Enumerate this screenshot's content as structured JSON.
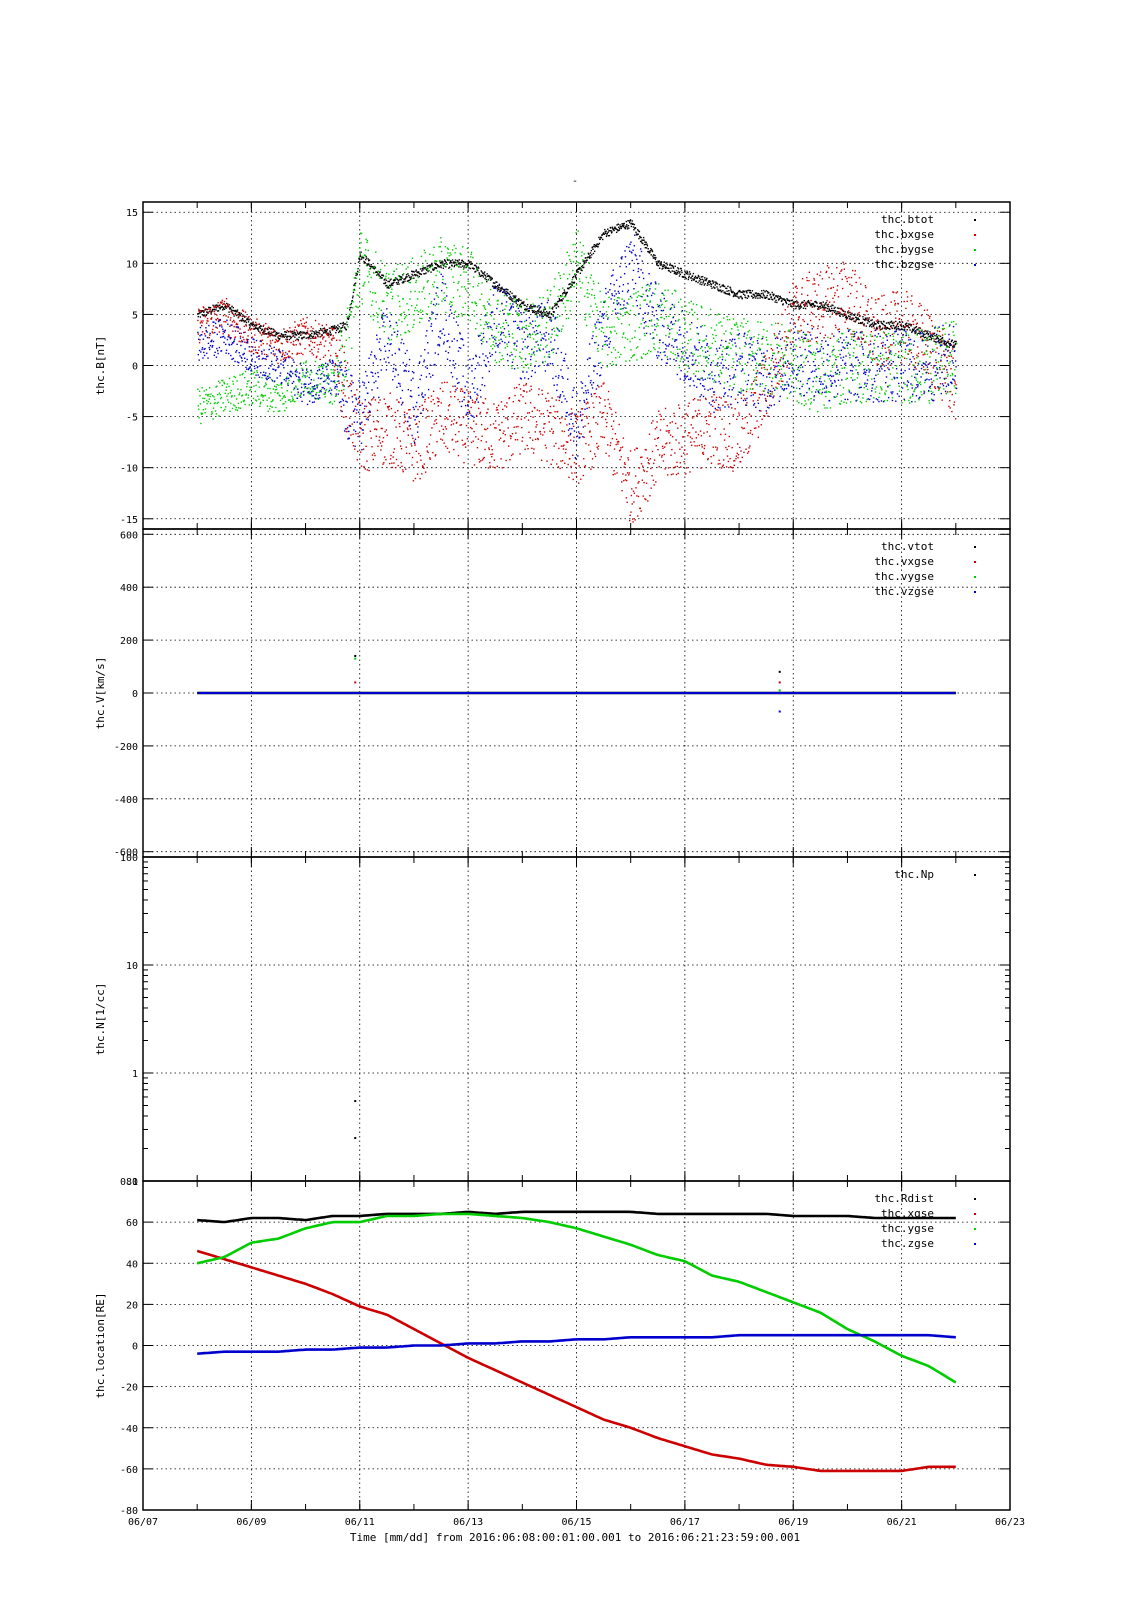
{
  "figure": {
    "title": "-",
    "xlabel": "Time [mm/dd]  from 2016:06:08:00:01:00.001  to  2016:06:21:23:59:00.001",
    "x_ticks": [
      "06/07",
      "06/09",
      "06/11",
      "06/13",
      "06/15",
      "06/17",
      "06/19",
      "06/21",
      "06/23"
    ],
    "colors": {
      "black": "#000000",
      "red": "#cc0000",
      "green": "#00cc00",
      "blue": "#0000cc"
    }
  },
  "chart_data": [
    {
      "type": "scatter",
      "ylabel": "thc.B[nT]",
      "ylim": [
        -16,
        16
      ],
      "yticks": [
        15,
        10,
        5,
        0,
        -5,
        -10,
        -15
      ],
      "ytick_labels": [
        "15",
        "10",
        "5",
        "0",
        "-5",
        "-10",
        "-15"
      ],
      "grid": true,
      "legend": "top-right",
      "xlim": [
        "06/07",
        "06/23"
      ],
      "series": [
        {
          "name": "thc.btot",
          "color": "#000000",
          "x": [
            "06/08",
            "06/08 12:00",
            "06/09",
            "06/09 12:00",
            "06/10",
            "06/10 12:00",
            "06/10 18:00",
            "06/11",
            "06/11 12:00",
            "06/12",
            "06/12 12:00",
            "06/13",
            "06/13 12:00",
            "06/14",
            "06/14 12:00",
            "06/15",
            "06/15 12:00",
            "06/16",
            "06/16 12:00",
            "06/17",
            "06/17 12:00",
            "06/18",
            "06/18 12:00",
            "06/19",
            "06/19 12:00",
            "06/20",
            "06/20 12:00",
            "06/21",
            "06/21 12:00",
            "06/22"
          ],
          "y": [
            5,
            6,
            4,
            3,
            3,
            3.5,
            4,
            11,
            8,
            9,
            10,
            10,
            8,
            6,
            5,
            9,
            13,
            14,
            10,
            9,
            8,
            7,
            7,
            6,
            6,
            5,
            4,
            4,
            3,
            2
          ]
        },
        {
          "name": "thc.bxgse",
          "color": "#cc0000",
          "x": [
            "06/08",
            "06/08 12:00",
            "06/09",
            "06/09 12:00",
            "06/10",
            "06/10 12:00",
            "06/10 18:00",
            "06/11",
            "06/11 12:00",
            "06/12",
            "06/12 12:00",
            "06/13",
            "06/13 12:00",
            "06/14",
            "06/14 12:00",
            "06/15",
            "06/15 12:00",
            "06/16",
            "06/16 12:00",
            "06/17",
            "06/17 12:00",
            "06/18",
            "06/18 12:00",
            "06/19",
            "06/19 12:00",
            "06/20",
            "06/20 12:00",
            "06/21",
            "06/21 12:00",
            "06/22"
          ],
          "y": [
            4,
            5,
            3,
            2,
            3,
            2,
            -3,
            -7,
            -6,
            -8,
            -5,
            -6,
            -7,
            -5,
            -6,
            -8,
            -5,
            -12,
            -8,
            -7,
            -6,
            -7,
            -2,
            5,
            6,
            7,
            3,
            4,
            2,
            -2
          ]
        },
        {
          "name": "thc.bygse",
          "color": "#00cc00",
          "x": [
            "06/08",
            "06/08 12:00",
            "06/09",
            "06/09 12:00",
            "06/10",
            "06/10 12:00",
            "06/10 18:00",
            "06/11",
            "06/11 12:00",
            "06/12",
            "06/12 12:00",
            "06/13",
            "06/13 12:00",
            "06/14",
            "06/14 12:00",
            "06/15",
            "06/15 12:00",
            "06/16",
            "06/16 12:00",
            "06/17",
            "06/17 12:00",
            "06/18",
            "06/18 12:00",
            "06/19",
            "06/19 12:00",
            "06/20",
            "06/20 12:00",
            "06/21",
            "06/21 12:00",
            "06/22"
          ],
          "y": [
            -4,
            -3,
            -2,
            -3,
            -1,
            -2,
            2,
            10,
            6,
            7,
            9,
            8,
            4,
            3,
            4,
            10,
            3,
            4,
            5,
            3,
            2,
            1,
            1,
            0,
            -1,
            0,
            0,
            0,
            0,
            1
          ]
        },
        {
          "name": "thc.bzgse",
          "color": "#0000cc",
          "x": [
            "06/08",
            "06/08 12:00",
            "06/09",
            "06/09 12:00",
            "06/10",
            "06/10 12:00",
            "06/10 18:00",
            "06/11",
            "06/11 12:00",
            "06/12",
            "06/12 12:00",
            "06/13",
            "06/13 12:00",
            "06/14",
            "06/14 12:00",
            "06/15",
            "06/15 12:00",
            "06/16",
            "06/16 12:00",
            "06/17",
            "06/17 12:00",
            "06/18",
            "06/18 12:00",
            "06/19",
            "06/19 12:00",
            "06/20",
            "06/20 12:00",
            "06/21",
            "06/21 12:00",
            "06/22"
          ],
          "y": [
            2,
            3,
            1,
            0,
            -2,
            -1,
            -4,
            -5,
            3,
            -4,
            6,
            -3,
            5,
            2,
            3,
            -6,
            4,
            10,
            4,
            2,
            -1,
            0,
            -1,
            1,
            0,
            0,
            0,
            0,
            0,
            1
          ]
        }
      ]
    },
    {
      "type": "scatter",
      "ylabel": "thc.V[km/s]",
      "ylim": [
        -620,
        620
      ],
      "yticks": [
        600,
        400,
        200,
        0,
        -200,
        -400,
        -600
      ],
      "ytick_labels": [
        "600",
        "400",
        "200",
        "0",
        "-200",
        "-400",
        "-600"
      ],
      "grid": true,
      "legend": "top-right",
      "xlim": [
        "06/07",
        "06/23"
      ],
      "series": [
        {
          "name": "thc.vtot",
          "color": "#000000",
          "x": [
            "06/08",
            "06/10 22:00",
            "06/18 18:00",
            "06/22"
          ],
          "y": [
            0,
            140,
            80,
            0
          ]
        },
        {
          "name": "thc.vxgse",
          "color": "#cc0000",
          "x": [
            "06/08",
            "06/10 22:00",
            "06/18 18:00",
            "06/22"
          ],
          "y": [
            0,
            40,
            40,
            0
          ]
        },
        {
          "name": "thc.vygse",
          "color": "#00cc00",
          "x": [
            "06/08",
            "06/10 22:00",
            "06/18 18:00",
            "06/22"
          ],
          "y": [
            0,
            130,
            10,
            0
          ]
        },
        {
          "name": "thc.vzgse",
          "color": "#0000cc",
          "x": [
            "06/08",
            "06/10 22:00",
            "06/18 18:00",
            "06/22"
          ],
          "y": [
            0,
            0,
            -70,
            0
          ]
        }
      ]
    },
    {
      "type": "scatter",
      "ylabel": "thc.N[1/cc]",
      "yscale": "log",
      "ylim": [
        0.1,
        100
      ],
      "yticks": [
        100,
        10,
        1,
        0.1
      ],
      "ytick_labels": [
        "100",
        "10",
        "1",
        "0.1"
      ],
      "grid": true,
      "legend": "top-right",
      "xlim": [
        "06/07",
        "06/23"
      ],
      "series": [
        {
          "name": "thc.Np",
          "color": "#000000",
          "x": [
            "06/10 22:00",
            "06/10 22:00"
          ],
          "y": [
            0.55,
            0.25
          ]
        }
      ]
    },
    {
      "type": "line",
      "ylabel": "thc.location[RE]",
      "ylim": [
        -80,
        80
      ],
      "yticks": [
        80,
        60,
        40,
        20,
        0,
        -20,
        -40,
        -60,
        -80
      ],
      "ytick_labels": [
        "80",
        "60",
        "40",
        "20",
        "0",
        "-20",
        "-40",
        "-60",
        "-80"
      ],
      "grid": true,
      "legend": "top-right",
      "xlim": [
        "06/07",
        "06/23"
      ],
      "series": [
        {
          "name": "thc.Rdist",
          "color": "#000000",
          "x": [
            "06/08",
            "06/08 12:00",
            "06/09",
            "06/09 12:00",
            "06/10",
            "06/10 12:00",
            "06/11",
            "06/11 12:00",
            "06/12",
            "06/12 12:00",
            "06/13",
            "06/13 12:00",
            "06/14",
            "06/14 12:00",
            "06/15",
            "06/15 12:00",
            "06/16",
            "06/16 12:00",
            "06/17",
            "06/17 12:00",
            "06/18",
            "06/18 12:00",
            "06/19",
            "06/19 12:00",
            "06/20",
            "06/20 12:00",
            "06/21",
            "06/21 12:00",
            "06/22"
          ],
          "y": [
            61,
            60,
            62,
            62,
            61,
            63,
            63,
            64,
            64,
            64,
            65,
            64,
            65,
            65,
            65,
            65,
            65,
            64,
            64,
            64,
            64,
            64,
            63,
            63,
            63,
            62,
            62,
            62,
            62
          ]
        },
        {
          "name": "thc.xgse",
          "color": "#cc0000",
          "x": [
            "06/08",
            "06/08 12:00",
            "06/09",
            "06/09 12:00",
            "06/10",
            "06/10 12:00",
            "06/11",
            "06/11 12:00",
            "06/12",
            "06/12 12:00",
            "06/13",
            "06/13 12:00",
            "06/14",
            "06/14 12:00",
            "06/15",
            "06/15 12:00",
            "06/16",
            "06/16 12:00",
            "06/17",
            "06/17 12:00",
            "06/18",
            "06/18 12:00",
            "06/19",
            "06/19 12:00",
            "06/20",
            "06/20 12:00",
            "06/21",
            "06/21 12:00",
            "06/22"
          ],
          "y": [
            46,
            42,
            38,
            34,
            30,
            25,
            19,
            15,
            8,
            1,
            -6,
            -12,
            -18,
            -24,
            -30,
            -36,
            -40,
            -45,
            -49,
            -53,
            -55,
            -58,
            -59,
            -61,
            -61,
            -61,
            -61,
            -59,
            -59
          ]
        },
        {
          "name": "thc.ygse",
          "color": "#00cc00",
          "x": [
            "06/08",
            "06/08 12:00",
            "06/09",
            "06/09 12:00",
            "06/10",
            "06/10 12:00",
            "06/11",
            "06/11 12:00",
            "06/12",
            "06/12 12:00",
            "06/13",
            "06/13 12:00",
            "06/14",
            "06/14 12:00",
            "06/15",
            "06/15 12:00",
            "06/16",
            "06/16 12:00",
            "06/17",
            "06/17 12:00",
            "06/18",
            "06/18 12:00",
            "06/19",
            "06/19 12:00",
            "06/20",
            "06/20 12:00",
            "06/21",
            "06/21 12:00",
            "06/22"
          ],
          "y": [
            40,
            43,
            50,
            52,
            57,
            60,
            60,
            63,
            63,
            64,
            64,
            63,
            62,
            60,
            57,
            53,
            49,
            44,
            41,
            34,
            31,
            26,
            21,
            16,
            8,
            2,
            -5,
            -10,
            -18
          ]
        },
        {
          "name": "thc.zgse",
          "color": "#0000cc",
          "x": [
            "06/08",
            "06/08 12:00",
            "06/09",
            "06/09 12:00",
            "06/10",
            "06/10 12:00",
            "06/11",
            "06/11 12:00",
            "06/12",
            "06/12 12:00",
            "06/13",
            "06/13 12:00",
            "06/14",
            "06/14 12:00",
            "06/15",
            "06/15 12:00",
            "06/16",
            "06/16 12:00",
            "06/17",
            "06/17 12:00",
            "06/18",
            "06/18 12:00",
            "06/19",
            "06/19 12:00",
            "06/20",
            "06/20 12:00",
            "06/21",
            "06/21 12:00",
            "06/22"
          ],
          "y": [
            -4,
            -3,
            -3,
            -3,
            -2,
            -2,
            -1,
            -1,
            0,
            0,
            1,
            1,
            2,
            2,
            3,
            3,
            4,
            4,
            4,
            4,
            5,
            5,
            5,
            5,
            5,
            5,
            5,
            5,
            4
          ]
        }
      ]
    }
  ]
}
